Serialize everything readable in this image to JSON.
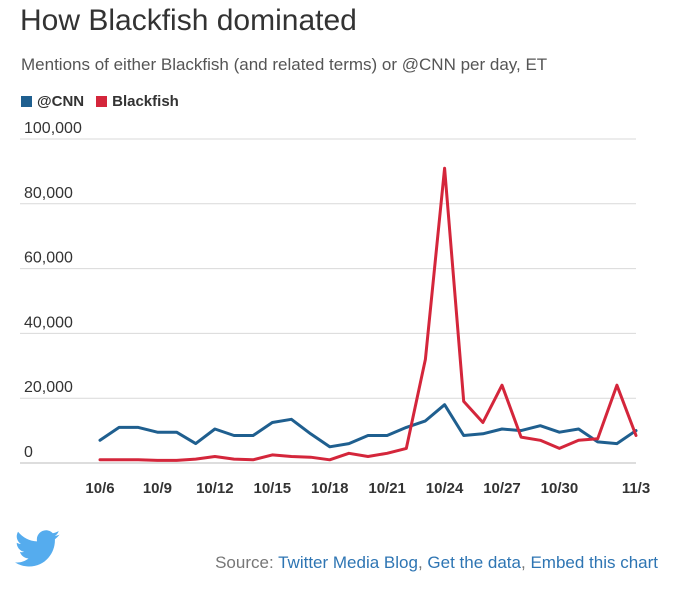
{
  "header": {
    "title": "How Blackfish dominated",
    "subtitle": "Mentions of either Blackfish (and related terms) or @CNN per day, ET"
  },
  "legend": [
    {
      "label": "@CNN",
      "color": "#1f5f8f"
    },
    {
      "label": "Blackfish",
      "color": "#d4263b"
    }
  ],
  "footer": {
    "prefix": "Source: ",
    "link1": "Twitter Media Blog",
    "sep1": ", ",
    "link2": "Get the data",
    "sep2": ", ",
    "link3": "Embed this chart"
  },
  "icons": {
    "brand": "twitter-bird-icon",
    "brand_color": "#55acee"
  },
  "chart_data": {
    "type": "line",
    "title": "How Blackfish dominated",
    "subtitle": "Mentions of either Blackfish (and related terms) or @CNN per day, ET",
    "x": [
      "10/6",
      "10/7",
      "10/8",
      "10/9",
      "10/10",
      "10/11",
      "10/12",
      "10/13",
      "10/14",
      "10/15",
      "10/16",
      "10/17",
      "10/18",
      "10/19",
      "10/20",
      "10/21",
      "10/22",
      "10/23",
      "10/24",
      "10/25",
      "10/26",
      "10/27",
      "10/28",
      "10/29",
      "10/30",
      "10/31",
      "11/1",
      "11/2",
      "11/3"
    ],
    "x_tick_labels": [
      "10/6",
      "10/9",
      "10/12",
      "10/15",
      "10/18",
      "10/21",
      "10/24",
      "10/27",
      "10/30",
      "11/3"
    ],
    "y_tick_labels": [
      "0",
      "20,000",
      "40,000",
      "60,000",
      "80,000",
      "100,000"
    ],
    "ylim": [
      0,
      100000
    ],
    "grid": true,
    "series": [
      {
        "name": "@CNN",
        "color": "#1f5f8f",
        "values": [
          7000,
          11000,
          11000,
          9500,
          9500,
          6000,
          10500,
          8500,
          8500,
          12500,
          13500,
          9000,
          5000,
          6000,
          8500,
          8500,
          11000,
          13000,
          18000,
          8500,
          9000,
          10500,
          10000,
          11500,
          9500,
          10500,
          6500,
          6000,
          10000
        ]
      },
      {
        "name": "Blackfish",
        "color": "#d4263b",
        "values": [
          1000,
          1000,
          1000,
          800,
          800,
          1200,
          2000,
          1200,
          1000,
          2500,
          2000,
          1800,
          1000,
          3000,
          2000,
          3000,
          4500,
          32000,
          91000,
          19000,
          12500,
          24000,
          8000,
          7000,
          4500,
          7000,
          7500,
          24000,
          8500
        ]
      }
    ]
  }
}
